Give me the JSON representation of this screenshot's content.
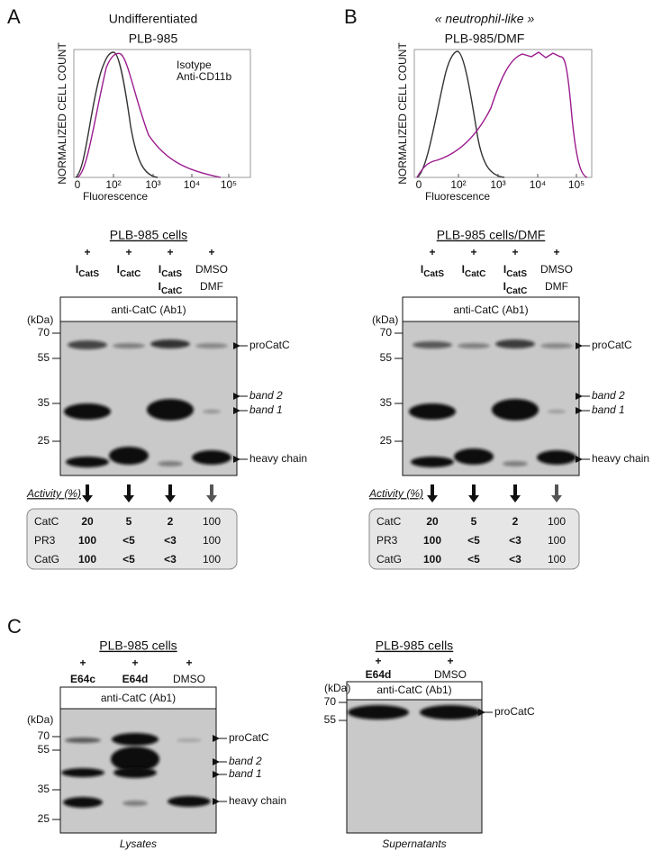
{
  "panel_a": {
    "label": "A",
    "title": [
      "Undifferentiated",
      "PLB-985"
    ],
    "y_label": "NORMALIZED CELL COUNT",
    "x_label": "Fluorescence",
    "x_ticks": [
      "0",
      "10²",
      "10³",
      "10⁴",
      "10⁵"
    ],
    "legend": [
      "Isotype",
      "Anti-CD11b"
    ]
  },
  "panel_b": {
    "label": "B",
    "title": [
      "« neutrophil-like »",
      "PLB-985/DMF"
    ],
    "y_label": "NORMALIZED CELL COUNT",
    "x_label": "Fluorescence",
    "x_ticks": [
      "0",
      "10²",
      "10³",
      "10⁴",
      "10⁵"
    ]
  },
  "blot_a": {
    "title": "PLB-985 cells",
    "plus": [
      "+",
      "+",
      "+",
      "+"
    ],
    "lanes": [
      [
        {
          "main": "I",
          "sub": "CatS"
        }
      ],
      [
        {
          "main": "I",
          "sub": "CatC"
        }
      ],
      [
        {
          "main": "I",
          "sub": "CatS"
        },
        {
          "main": "I",
          "sub": "CatC"
        }
      ],
      [
        {
          "main": "DMSO"
        },
        {
          "main": "DMF"
        }
      ]
    ],
    "antibody": "anti-CatC (Ab1)",
    "unit": "(kDa)",
    "markers": [
      "70",
      "55",
      "35",
      "25"
    ],
    "bands": [
      "proCatC",
      "band 2",
      "band 1",
      "heavy chain"
    ],
    "activity_label": "Activity (%)",
    "activity": [
      [
        "CatC",
        "20",
        "5",
        "2",
        "100"
      ],
      [
        "PR3",
        "100",
        "<5",
        "<3",
        "100"
      ],
      [
        "CatG",
        "100",
        "<5",
        "<3",
        "100"
      ]
    ]
  },
  "blot_b": {
    "title": "PLB-985 cells/DMF",
    "plus": [
      "+",
      "+",
      "+",
      "+"
    ],
    "lanes": [
      [
        {
          "main": "I",
          "sub": "CatS"
        }
      ],
      [
        {
          "main": "I",
          "sub": "CatC"
        }
      ],
      [
        {
          "main": "I",
          "sub": "CatS"
        },
        {
          "main": "I",
          "sub": "CatC"
        }
      ],
      [
        {
          "main": "DMSO"
        },
        {
          "main": "DMF"
        }
      ]
    ],
    "antibody": "anti-CatC (Ab1)",
    "unit": "(kDa)",
    "markers": [
      "70",
      "55",
      "35",
      "25"
    ],
    "bands": [
      "proCatC",
      "band 2",
      "band 1",
      "heavy chain"
    ],
    "activity_label": "Activity (%)",
    "activity": [
      [
        "CatC",
        "20",
        "5",
        "2",
        "100"
      ],
      [
        "PR3",
        "100",
        "<5",
        "<3",
        "100"
      ],
      [
        "CatG",
        "100",
        "<5",
        "<3",
        "100"
      ]
    ]
  },
  "panel_c": {
    "label": "C",
    "lysates": {
      "title": "PLB-985 cells",
      "plus": [
        "+",
        "+",
        "+"
      ],
      "lanes": [
        [
          {
            "main": "E64c"
          }
        ],
        [
          {
            "main": "E64d"
          }
        ],
        [
          {
            "main": "DMSO"
          }
        ]
      ],
      "antibody": "anti-CatC (Ab1)",
      "unit": "(kDa)",
      "markers": [
        "70",
        "55",
        "35",
        "25"
      ],
      "bands": [
        "proCatC",
        "band 2",
        "band 1",
        "heavy chain"
      ],
      "caption": "Lysates"
    },
    "supernatants": {
      "title": "PLB-985 cells",
      "plus": [
        "+",
        "+"
      ],
      "lanes": [
        [
          {
            "main": "E64d"
          }
        ],
        [
          {
            "main": "DMSO"
          }
        ]
      ],
      "antibody": "anti-CatC (Ab1)",
      "unit": "(kDa)",
      "markers": [
        "70",
        "55"
      ],
      "bands": [
        "proCatC"
      ],
      "caption": "Supernatants"
    }
  }
}
